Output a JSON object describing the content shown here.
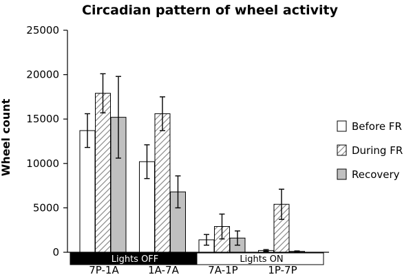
{
  "chart_data": {
    "type": "bar",
    "title": "Circadian pattern of wheel activity",
    "xlabel": "",
    "ylabel": "Wheel count",
    "ylim": [
      0,
      25000
    ],
    "yticks": [
      0,
      5000,
      10000,
      15000,
      20000,
      25000
    ],
    "categories": [
      "7P-1A",
      "1A-7A",
      "7A-1P",
      "1P-7P"
    ],
    "series": [
      {
        "name": "Before FR",
        "values": [
          13700,
          10200,
          1400,
          200
        ],
        "errors": [
          1900,
          1900,
          600,
          100
        ],
        "fill": "white"
      },
      {
        "name": "During FR",
        "values": [
          17900,
          15600,
          2900,
          5400
        ],
        "errors": [
          2200,
          1900,
          1400,
          1700
        ],
        "fill": "hatch"
      },
      {
        "name": "Recovery",
        "values": [
          15200,
          6800,
          1600,
          100
        ],
        "errors": [
          4600,
          1800,
          800,
          50
        ],
        "fill": "gray"
      }
    ],
    "light_bands": [
      {
        "label": "Lights OFF",
        "categories": [
          "7P-1A",
          "1A-7A"
        ],
        "style": "dark"
      },
      {
        "label": "Lights ON",
        "categories": [
          "7A-1P",
          "1P-7P"
        ],
        "style": "light"
      }
    ],
    "legend_position": "right",
    "grid": false,
    "colors": {
      "gray": "#c0c0c0",
      "hatch": "#7f7f7f",
      "dark": "#000000",
      "light": "#ffffff"
    }
  }
}
